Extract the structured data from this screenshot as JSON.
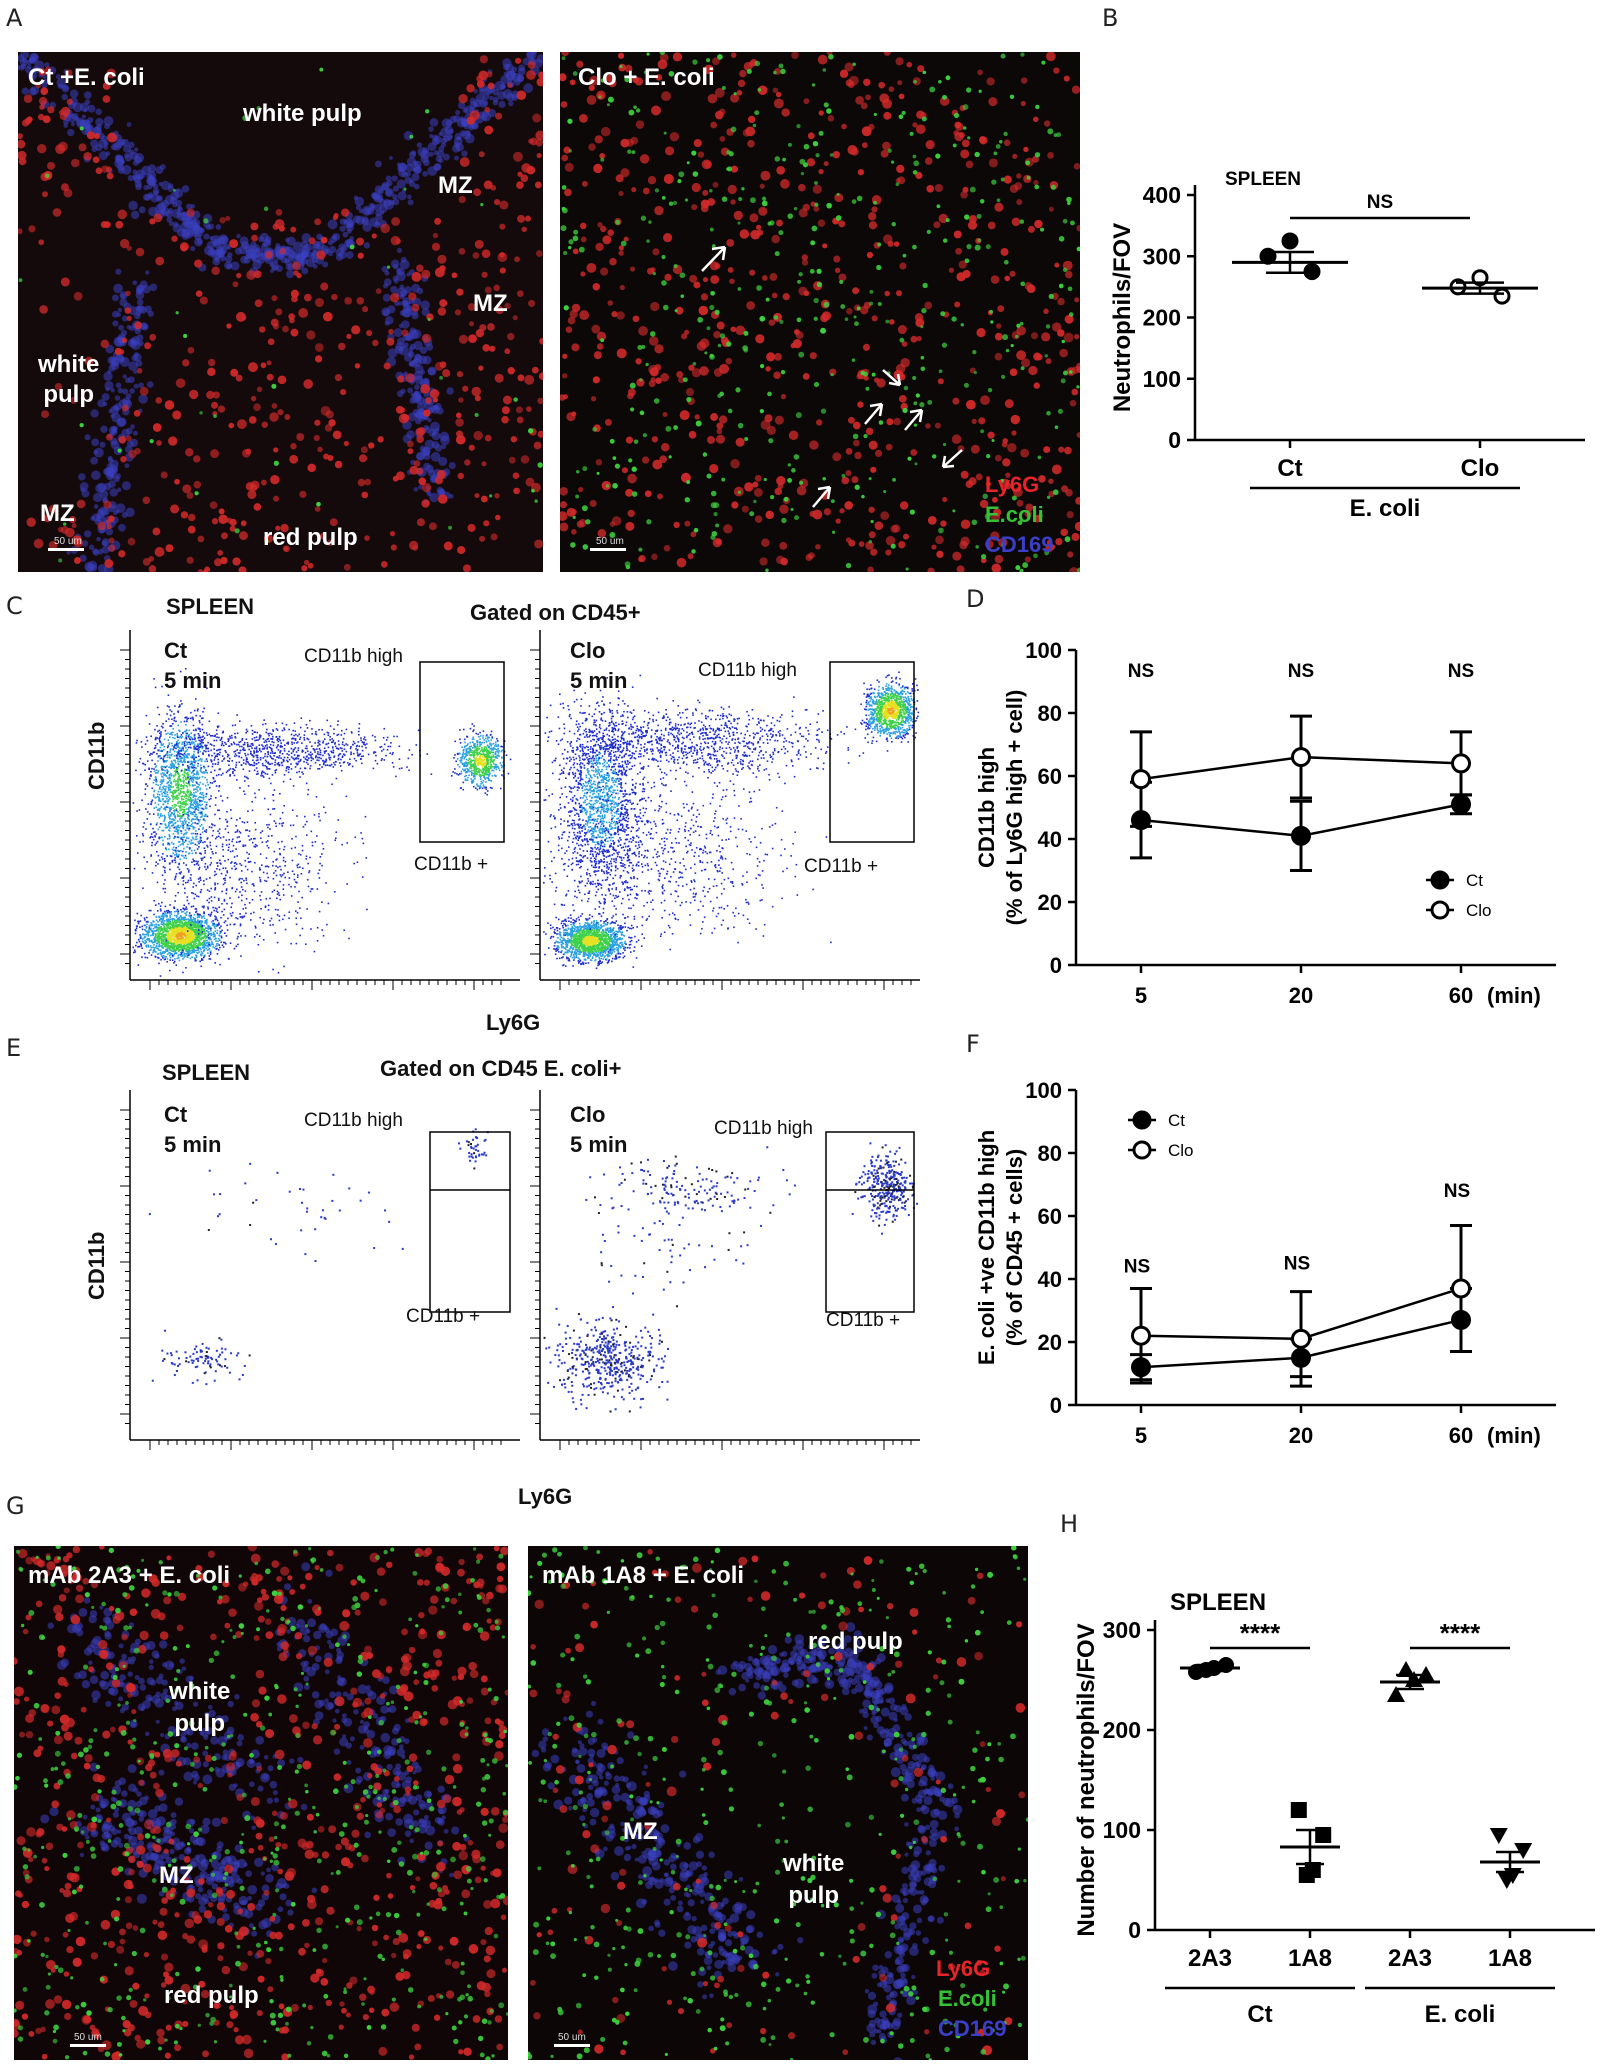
{
  "panel_labels": {
    "A": "A",
    "B": "B",
    "C": "C",
    "D": "D",
    "E": "E",
    "F": "F",
    "G": "G",
    "H": "H"
  },
  "panel_A": {
    "left": {
      "title": "Ct +E. coli",
      "regions": {
        "white_pulp_top": "white pulp",
        "mz_1": "MZ",
        "mz_2": "MZ",
        "white_pulp_left": "white\npulp",
        "mz_3": "MZ",
        "red_pulp": "red pulp"
      },
      "scale": "50 um"
    },
    "right": {
      "title": "Clo + E. coli",
      "legend": {
        "ly6g": "Ly6G",
        "ecoli": "E.coli",
        "cd169": "CD169"
      },
      "scale": "50 um"
    },
    "colors": {
      "ly6g": "#e8242a",
      "ecoli": "#35c235",
      "cd169": "#3b3fc8"
    }
  },
  "panel_B": {
    "chart_data": {
      "type": "scatter",
      "title": "SPLEEN",
      "ylabel": "Neutrophils/FOV",
      "ylim": [
        0,
        400
      ],
      "yticks": [
        "0",
        "100",
        "200",
        "300",
        "400"
      ],
      "categories": [
        "Ct",
        "Clo"
      ],
      "group_label": "E. coli",
      "points": {
        "Ct": [
          325,
          300,
          275
        ],
        "Clo": [
          265,
          250,
          235
        ]
      },
      "mean": [
        290,
        248
      ],
      "sem": [
        17,
        9
      ],
      "annotation": "NS"
    }
  },
  "panel_C": {
    "title": "SPLEEN",
    "gate": "Gated on CD45+",
    "xlabel": "Ly6G",
    "ylabel": "CD11b",
    "left": {
      "group": "Ct",
      "time": "5 min",
      "gate_high": "CD11b high",
      "gate_pos": "CD11b +"
    },
    "right": {
      "group": "Clo",
      "time": "5 min",
      "gate_high": "CD11b high",
      "gate_pos": "CD11b +"
    }
  },
  "panel_D": {
    "chart_data": {
      "type": "line",
      "ylabel_line1": "CD11b high",
      "ylabel_line2": "(% of Ly6G high + cell)",
      "x": [
        "5",
        "20",
        "60"
      ],
      "xunit": "(min)",
      "ylim": [
        0,
        100
      ],
      "yticks": [
        "0",
        "20",
        "40",
        "60",
        "80",
        "100"
      ],
      "annotations": [
        "NS",
        "NS",
        "NS"
      ],
      "series": [
        {
          "name": "Ct",
          "values": [
            46,
            41,
            51
          ],
          "err": [
            12,
            11,
            3
          ],
          "filled": true
        },
        {
          "name": "Clo",
          "values": [
            59,
            66,
            64
          ],
          "err": [
            15,
            13,
            10
          ],
          "filled": false
        }
      ],
      "legend": "right"
    }
  },
  "panel_E": {
    "title": "SPLEEN",
    "gate": "Gated on CD45  E. coli+",
    "xlabel": "Ly6G",
    "ylabel": "CD11b",
    "left": {
      "group": "Ct",
      "time": "5 min",
      "gate_high": "CD11b high",
      "gate_pos": "CD11b +"
    },
    "right": {
      "group": "Clo",
      "time": "5 min",
      "gate_high": "CD11b high",
      "gate_pos": "CD11b +"
    }
  },
  "panel_F": {
    "chart_data": {
      "type": "line",
      "ylabel_line1": "E. coli +ve CD11b high",
      "ylabel_line2": "(% of CD45 + cells)",
      "x": [
        "5",
        "20",
        "60"
      ],
      "xunit": "(min)",
      "ylim": [
        0,
        100
      ],
      "yticks": [
        "0",
        "20",
        "40",
        "60",
        "80",
        "100"
      ],
      "annotations": [
        "NS",
        "NS",
        "NS"
      ],
      "series": [
        {
          "name": "Ct",
          "values": [
            12,
            15,
            27
          ],
          "err": [
            4,
            6,
            10
          ],
          "filled": true
        },
        {
          "name": "Clo",
          "values": [
            22,
            21,
            37
          ],
          "err": [
            15,
            15,
            20
          ],
          "filled": false
        }
      ],
      "legend": "top-left"
    }
  },
  "panel_G": {
    "left": {
      "title": "mAb 2A3 + E. coli",
      "regions": {
        "white_pulp": "white\npulp",
        "mz": "MZ",
        "red_pulp": "red pulp"
      },
      "scale": "50 um"
    },
    "right": {
      "title": "mAb 1A8 + E. coli",
      "regions": {
        "red_pulp": "red pulp",
        "mz": "MZ",
        "white_pulp": "white\npulp"
      },
      "legend": {
        "ly6g": "Ly6G",
        "ecoli": "E.coli",
        "cd169": "CD169"
      },
      "scale": "50 um"
    }
  },
  "panel_H": {
    "chart_data": {
      "type": "scatter",
      "title": "SPLEEN",
      "ylabel": "Number of neutrophils/FOV",
      "ylim": [
        0,
        300
      ],
      "yticks": [
        "0",
        "100",
        "200",
        "300"
      ],
      "categories": [
        "2A3",
        "1A8",
        "2A3",
        "1A8"
      ],
      "groups": [
        {
          "label": "Ct",
          "span": [
            0,
            1
          ]
        },
        {
          "label": "E. coli",
          "span": [
            2,
            3
          ]
        }
      ],
      "points": [
        [
          258,
          262,
          265,
          260
        ],
        [
          120,
          95,
          60,
          55
        ],
        [
          235,
          250,
          255,
          260
        ],
        [
          95,
          80,
          55,
          50
        ]
      ],
      "markers": [
        "circle",
        "square",
        "triangle-up",
        "triangle-down"
      ],
      "mean": [
        262,
        83,
        248,
        68
      ],
      "sem": [
        3,
        17,
        7,
        10
      ],
      "annotations": [
        "****",
        "****"
      ]
    }
  }
}
